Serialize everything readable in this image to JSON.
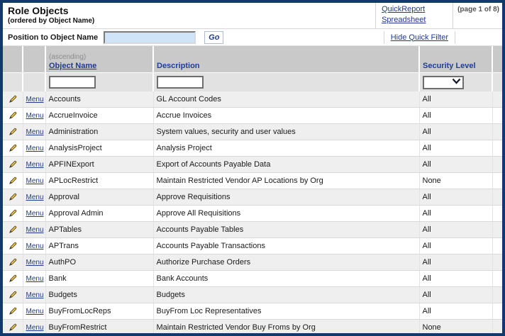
{
  "header": {
    "title": "Role Objects",
    "subtitle": "(ordered by Object Name)",
    "quick_report": "QuickReport",
    "spreadsheet": "Spreadsheet",
    "page_info": "(page 1 of 8)"
  },
  "toolbar": {
    "position_label": "Position to Object Name",
    "position_value": "",
    "position_placeholder": "",
    "go_label": "Go",
    "hide_filter_label": "Hide Quick Filter"
  },
  "table": {
    "sort_note": "(ascending)",
    "columns": {
      "object_name": "Object Name",
      "description": "Description",
      "security": "Security Level"
    },
    "menu_label": "Menu",
    "filters": {
      "object_name_value": "",
      "description_value": "",
      "security_selected": ""
    },
    "rows": [
      {
        "name": "Accounts",
        "description": "GL Account Codes",
        "security": "All"
      },
      {
        "name": "AccrueInvoice",
        "description": "Accrue Invoices",
        "security": "All"
      },
      {
        "name": "Administration",
        "description": "System values, security and user values",
        "security": "All"
      },
      {
        "name": "AnalysisProject",
        "description": "Analysis Project",
        "security": "All"
      },
      {
        "name": "APFINExport",
        "description": "Export of Accounts Payable Data",
        "security": "All"
      },
      {
        "name": "APLocRestrict",
        "description": "Maintain Restricted Vendor AP Locations by Org",
        "security": "None"
      },
      {
        "name": "Approval",
        "description": "Approve Requisitions",
        "security": "All"
      },
      {
        "name": "Approval Admin",
        "description": "Approve All Requisitions",
        "security": "All"
      },
      {
        "name": "APTables",
        "description": "Accounts Payable Tables",
        "security": "All"
      },
      {
        "name": "APTrans",
        "description": "Accounts Payable Transactions",
        "security": "All"
      },
      {
        "name": "AuthPO",
        "description": "Authorize Purchase Orders",
        "security": "All"
      },
      {
        "name": "Bank",
        "description": "Bank Accounts",
        "security": "All"
      },
      {
        "name": "Budgets",
        "description": "Budgets",
        "security": "All"
      },
      {
        "name": "BuyFromLocReps",
        "description": "BuyFrom Loc Representatives",
        "security": "All"
      },
      {
        "name": "BuyFromRestrict",
        "description": "Maintain Restricted Vendor Buy Froms by Org",
        "security": "None"
      }
    ]
  },
  "icons": {
    "row_edit": "pencil-icon",
    "security_filter": "chevron-down-icon"
  },
  "colors": {
    "frame_border": "#113a6c",
    "link_navy": "#213a8f",
    "header_bg": "#c9c9c9",
    "filter_row_bg": "#e2e2e2",
    "zebra_row_bg": "#efefef",
    "position_input_bg": "#cfe3f9"
  }
}
